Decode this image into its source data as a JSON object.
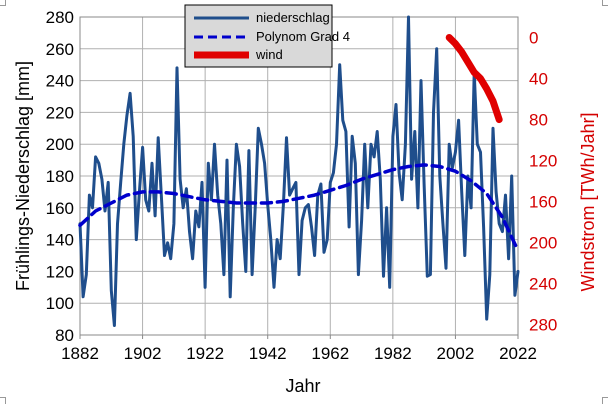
{
  "chart_data": {
    "type": "line",
    "xlabel": "Jahr",
    "ylabel": "Frühlings-Niederschlag [mm]",
    "y2label": "Windstrom [TWh/Jahr]",
    "xlim": [
      1882,
      2022
    ],
    "ylim": [
      80,
      280
    ],
    "y2lim": [
      -20,
      290
    ],
    "y2_inverted": true,
    "x_ticks": [
      1882,
      1902,
      1922,
      1942,
      1962,
      1982,
      2002,
      2022
    ],
    "y_ticks": [
      80,
      100,
      120,
      140,
      160,
      180,
      200,
      220,
      240,
      260,
      280
    ],
    "y2_ticks": [
      0,
      40,
      80,
      120,
      160,
      200,
      240,
      280
    ],
    "grid": true,
    "legend_position": "top-center",
    "colors": {
      "niederschlag": "#1f4e8c",
      "polynom": "#0000cc",
      "wind": "#e00000",
      "right_axis": "#d40000",
      "grid": "#b0b0b0"
    },
    "series": [
      {
        "name": "niederschlag",
        "axis": "left",
        "style": "solid",
        "x": [
          1882,
          1883,
          1884,
          1885,
          1886,
          1887,
          1888,
          1889,
          1890,
          1891,
          1892,
          1893,
          1894,
          1895,
          1896,
          1897,
          1898,
          1899,
          1900,
          1901,
          1902,
          1903,
          1904,
          1905,
          1906,
          1907,
          1908,
          1909,
          1910,
          1911,
          1912,
          1913,
          1914,
          1915,
          1916,
          1917,
          1918,
          1919,
          1920,
          1921,
          1922,
          1923,
          1924,
          1925,
          1926,
          1927,
          1928,
          1929,
          1930,
          1931,
          1932,
          1933,
          1934,
          1935,
          1936,
          1937,
          1938,
          1939,
          1940,
          1941,
          1942,
          1943,
          1944,
          1945,
          1946,
          1947,
          1948,
          1949,
          1950,
          1951,
          1952,
          1953,
          1954,
          1955,
          1956,
          1957,
          1958,
          1959,
          1960,
          1961,
          1962,
          1963,
          1964,
          1965,
          1966,
          1967,
          1968,
          1969,
          1970,
          1971,
          1972,
          1973,
          1974,
          1975,
          1976,
          1977,
          1978,
          1979,
          1980,
          1981,
          1982,
          1983,
          1984,
          1985,
          1986,
          1987,
          1988,
          1989,
          1990,
          1991,
          1992,
          1993,
          1994,
          1995,
          1996,
          1997,
          1998,
          1999,
          2000,
          2001,
          2002,
          2003,
          2004,
          2005,
          2006,
          2007,
          2008,
          2009,
          2010,
          2011,
          2012,
          2013,
          2014,
          2015,
          2016,
          2017,
          2018,
          2019,
          2020,
          2021,
          2022
        ],
        "values": [
          150,
          104,
          118,
          168,
          160,
          192,
          188,
          178,
          158,
          176,
          108,
          86,
          150,
          176,
          200,
          218,
          232,
          205,
          140,
          170,
          198,
          165,
          158,
          188,
          155,
          204,
          168,
          130,
          138,
          128,
          150,
          248,
          178,
          160,
          172,
          145,
          128,
          158,
          148,
          176,
          110,
          188,
          165,
          200,
          168,
          150,
          118,
          190,
          104,
          160,
          200,
          186,
          150,
          120,
          196,
          118,
          160,
          210,
          200,
          188,
          162,
          140,
          110,
          140,
          128,
          162,
          204,
          168,
          172,
          176,
          118,
          152,
          160,
          162,
          148,
          130,
          168,
          175,
          132,
          140,
          176,
          182,
          200,
          250,
          215,
          208,
          148,
          205,
          188,
          118,
          152,
          200,
          160,
          200,
          192,
          208,
          178,
          117,
          160,
          110,
          205,
          225,
          182,
          165,
          200,
          280,
          178,
          208,
          160,
          240,
          175,
          117,
          118,
          220,
          260,
          180,
          150,
          122,
          200,
          185,
          195,
          215,
          170,
          130,
          180,
          160,
          245,
          200,
          195,
          148,
          90,
          118,
          210,
          170,
          150,
          145,
          168,
          128,
          180,
          105,
          120
        ]
      },
      {
        "name": "Polynom Grad 4",
        "axis": "left",
        "style": "dashed",
        "x": [
          1882,
          1887,
          1892,
          1897,
          1902,
          1907,
          1912,
          1917,
          1922,
          1927,
          1932,
          1937,
          1942,
          1947,
          1952,
          1957,
          1962,
          1967,
          1972,
          1977,
          1982,
          1987,
          1992,
          1997,
          2002,
          2007,
          2012,
          2017,
          2022
        ],
        "values": [
          149,
          158,
          163,
          168,
          170,
          170,
          169,
          167,
          165,
          164,
          163,
          163,
          163,
          164,
          166,
          168,
          171,
          174,
          178,
          181,
          184,
          186,
          187,
          186,
          183,
          177,
          169,
          154,
          133
        ]
      },
      {
        "name": "wind",
        "axis": "right",
        "style": "solid-thick",
        "x": [
          2000,
          2002,
          2004,
          2006,
          2008,
          2010,
          2012,
          2014,
          2016
        ],
        "values": [
          0,
          6,
          14,
          24,
          34,
          40,
          50,
          62,
          80
        ]
      }
    ]
  }
}
